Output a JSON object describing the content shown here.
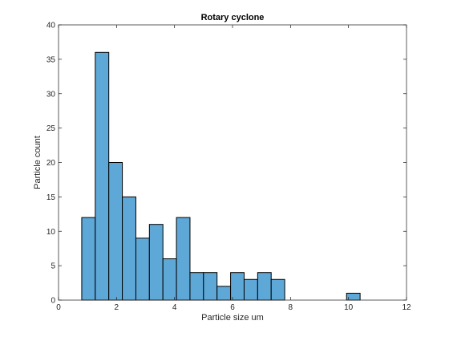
{
  "chart_data": {
    "type": "bar",
    "title": "Rotary cyclone",
    "xlabel": "Particle size um",
    "ylabel": "Particle count",
    "xlim": [
      0,
      12
    ],
    "ylim": [
      0,
      40
    ],
    "xticks": [
      0,
      2,
      4,
      6,
      8,
      10,
      12
    ],
    "yticks": [
      0,
      5,
      10,
      15,
      20,
      25,
      30,
      35,
      40
    ],
    "bin_width": 0.4667,
    "bins": [
      {
        "start": 0.8,
        "value": 12
      },
      {
        "start": 1.2667,
        "value": 36
      },
      {
        "start": 1.7333,
        "value": 20
      },
      {
        "start": 2.2,
        "value": 15
      },
      {
        "start": 2.6667,
        "value": 9
      },
      {
        "start": 3.1333,
        "value": 11
      },
      {
        "start": 3.6,
        "value": 6
      },
      {
        "start": 4.0667,
        "value": 12
      },
      {
        "start": 4.5333,
        "value": 4
      },
      {
        "start": 5.0,
        "value": 4
      },
      {
        "start": 5.4667,
        "value": 2
      },
      {
        "start": 5.9333,
        "value": 4
      },
      {
        "start": 6.4,
        "value": 3
      },
      {
        "start": 6.8667,
        "value": 4
      },
      {
        "start": 7.3333,
        "value": 3
      },
      {
        "start": 9.9333,
        "value": 1
      }
    ],
    "grid": false,
    "colors": {
      "bar": "#5ea8d8",
      "edge": "#000000"
    }
  }
}
